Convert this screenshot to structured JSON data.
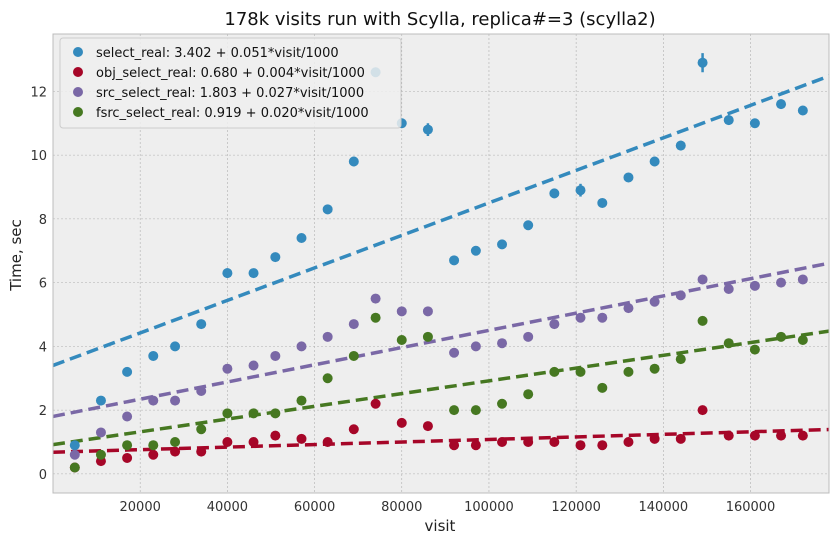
{
  "chart_data": {
    "type": "scatter",
    "title": "178k visits run with Scylla, replica#=3 (scylla2)",
    "xlabel": "visit",
    "ylabel": "Time, sec",
    "xlim": [
      0,
      178000
    ],
    "ylim": [
      -0.6,
      13.8
    ],
    "x_ticks": [
      20000,
      40000,
      60000,
      80000,
      100000,
      120000,
      140000,
      160000
    ],
    "y_ticks": [
      0,
      2,
      4,
      6,
      8,
      10,
      12
    ],
    "grid": true,
    "legend_position": "top-left",
    "x": [
      5000,
      11000,
      17000,
      23000,
      28000,
      34000,
      40000,
      46000,
      51000,
      57000,
      63000,
      69000,
      74000,
      80000,
      86000,
      92000,
      97000,
      103000,
      109000,
      115000,
      121000,
      126000,
      132000,
      138000,
      144000,
      149000,
      155000,
      161000,
      167000,
      172000
    ],
    "series": [
      {
        "name": "select_real: 3.402 + 0.051*visit/1000",
        "color": "#348abd",
        "values": [
          0.9,
          2.3,
          3.2,
          3.7,
          4.0,
          4.7,
          6.3,
          6.3,
          6.8,
          7.4,
          8.3,
          9.8,
          12.6,
          11.0,
          10.8,
          6.7,
          7.0,
          7.2,
          7.8,
          8.8,
          8.9,
          8.5,
          9.3,
          9.8,
          10.3,
          12.9,
          11.1,
          11.0,
          11.6,
          11.4
        ],
        "err": [
          0.1,
          0.1,
          0.1,
          0.1,
          0.1,
          0.1,
          0.15,
          0.1,
          0.1,
          0.1,
          0.15,
          0.15,
          0.1,
          0.15,
          0.2,
          0.1,
          0.1,
          0.1,
          0.15,
          0.15,
          0.2,
          0.1,
          0.1,
          0.15,
          0.15,
          0.3,
          0.15,
          0.1,
          0.15,
          0.1
        ],
        "fit": {
          "intercept": 3.402,
          "slope_per_1000": 0.051
        }
      },
      {
        "name": "obj_select_real: 0.680 + 0.004*visit/1000",
        "color": "#a60628",
        "values": [
          0.2,
          0.4,
          0.5,
          0.6,
          0.7,
          0.7,
          1.0,
          1.0,
          1.2,
          1.1,
          1.0,
          1.4,
          2.2,
          1.6,
          1.5,
          0.9,
          0.9,
          1.0,
          1.0,
          1.0,
          0.9,
          0.9,
          1.0,
          1.1,
          1.1,
          2.0,
          1.2,
          1.2,
          1.2,
          1.2
        ],
        "fit": {
          "intercept": 0.68,
          "slope_per_1000": 0.004
        }
      },
      {
        "name": "src_select_real: 1.803 + 0.027*visit/1000",
        "color": "#7a68a6",
        "values": [
          0.6,
          1.3,
          1.8,
          2.3,
          2.3,
          2.6,
          3.3,
          3.4,
          3.7,
          4.0,
          4.3,
          4.7,
          5.5,
          5.1,
          5.1,
          3.8,
          4.0,
          4.1,
          4.3,
          4.7,
          4.9,
          4.9,
          5.2,
          5.4,
          5.6,
          6.1,
          5.8,
          5.9,
          6.0,
          6.1
        ],
        "fit": {
          "intercept": 1.803,
          "slope_per_1000": 0.027
        }
      },
      {
        "name": "fsrc_select_real: 0.919 + 0.020*visit/1000",
        "color": "#467821",
        "values": [
          0.2,
          0.6,
          0.9,
          0.9,
          1.0,
          1.4,
          1.9,
          1.9,
          1.9,
          2.3,
          3.0,
          3.7,
          4.9,
          4.2,
          4.3,
          2.0,
          2.0,
          2.2,
          2.5,
          3.2,
          3.2,
          2.7,
          3.2,
          3.3,
          3.6,
          4.8,
          4.1,
          3.9,
          4.3,
          4.2
        ],
        "fit": {
          "intercept": 0.919,
          "slope_per_1000": 0.02
        }
      }
    ]
  },
  "colors": {
    "plot_background": "#eeeeee",
    "grid": "#b0b0b0",
    "frame": "#bcbcbc"
  }
}
